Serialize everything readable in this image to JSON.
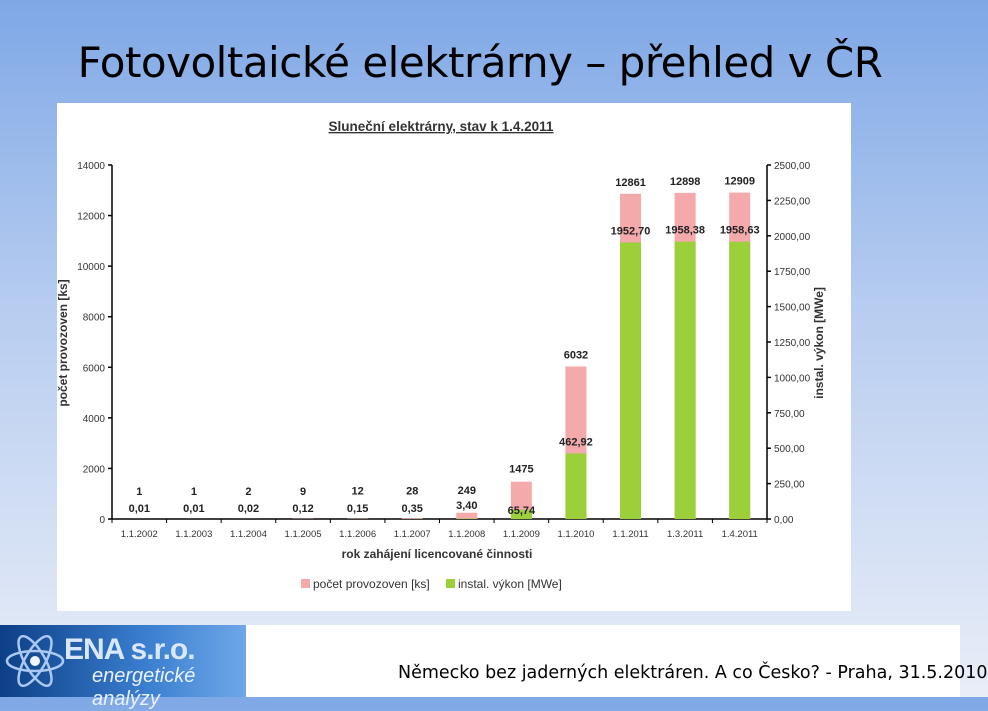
{
  "slide": {
    "title": "Fotovoltaické elektrárny – přehled v ČR",
    "footer": "Německo bez jaderných elektráren. A co Česko? - Praha, 31.5.2010",
    "logo": {
      "name": "ENA s.r.o.",
      "tagline": "energetické analýzy"
    }
  },
  "colors": {
    "pink": "#f4a9ab",
    "green": "#9bd03a",
    "axis": "#000000"
  },
  "chart_data": {
    "type": "bar",
    "title": "Sluneční elektrárny, stav k 1.4.2011",
    "xlabel": "rok zahájení licencované činnosti",
    "ylabel": "počet provozoven [ks]",
    "y2label": "instal. výkon [MWe]",
    "categories": [
      "1.1.2002",
      "1.1.2003",
      "1.1.2004",
      "1.1.2005",
      "1.1.2006",
      "1.1.2007",
      "1.1.2008",
      "1.1.2009",
      "1.1.2010",
      "1.1.2011",
      "1.3.2011",
      "1.4.2011"
    ],
    "ylim": [
      0,
      14000
    ],
    "y2lim": [
      0,
      2500
    ],
    "yticks": [
      "0",
      "2000",
      "4000",
      "6000",
      "8000",
      "10000",
      "12000",
      "14000"
    ],
    "y2ticks": [
      "0,00",
      "250,00",
      "500,00",
      "750,00",
      "1000,00",
      "1250,00",
      "1500,00",
      "1750,00",
      "2000,00",
      "2250,00",
      "2500,00"
    ],
    "legend_position": "bottom",
    "series": [
      {
        "name": "počet provozoven [ks]",
        "axis": "left",
        "color": "#f4a9ab",
        "values": [
          1,
          1,
          2,
          9,
          12,
          28,
          249,
          1475,
          6032,
          12861,
          12898,
          12909
        ],
        "labels": [
          "1",
          "1",
          "2",
          "9",
          "12",
          "28",
          "249",
          "1475",
          "6032",
          "12861",
          "12898",
          "12909"
        ]
      },
      {
        "name": "instal. výkon [MWe]",
        "axis": "right",
        "color": "#9bd03a",
        "values": [
          0.01,
          0.01,
          0.02,
          0.12,
          0.15,
          0.35,
          3.4,
          65.74,
          462.92,
          1952.7,
          1958.38,
          1958.63
        ],
        "labels": [
          "0,01",
          "0,01",
          "0,02",
          "0,12",
          "0,15",
          "0,35",
          "3,40",
          "65,74",
          "462,92",
          "1952,70",
          "1958,38",
          "1958,63"
        ]
      }
    ]
  }
}
